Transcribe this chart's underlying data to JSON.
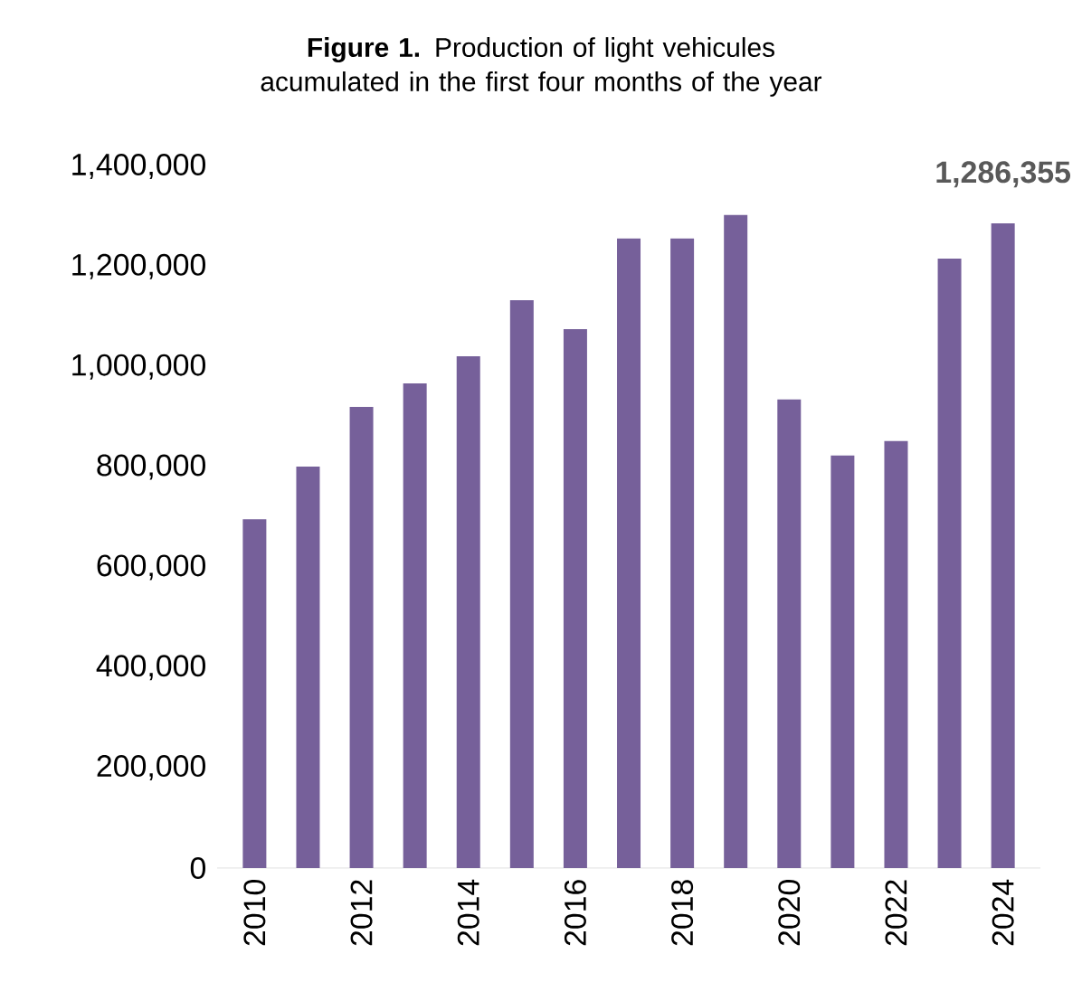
{
  "chart_data": {
    "type": "bar",
    "title": "**Figure 1.** Production of light vehicules acumulated in the first four months of the year",
    "categories": [
      "2010",
      null,
      "2012",
      null,
      "2014",
      null,
      "2016",
      null,
      "2018",
      null,
      "2020",
      null,
      "2022",
      null,
      "2024"
    ],
    "values": [
      696000,
      801000,
      920000,
      967000,
      1021000,
      1133000,
      1075000,
      1256000,
      1256000,
      1303000,
      935000,
      823000,
      852000,
      1216000,
      1286355
    ],
    "value_labels": [
      null,
      null,
      null,
      null,
      null,
      null,
      null,
      null,
      null,
      null,
      null,
      null,
      null,
      null,
      "1,286,355"
    ],
    "color": "#76609a",
    "ylim": [
      0,
      1400000
    ],
    "yticks": [
      {
        "value": 0,
        "label": "0"
      },
      {
        "value": 200000,
        "label": "200,000"
      },
      {
        "value": 400000,
        "label": "400,000"
      },
      {
        "value": 600000,
        "label": "600,000"
      },
      {
        "value": 800000,
        "label": "800,000"
      },
      {
        "value": 1000000,
        "label": "1,000,000"
      },
      {
        "value": 1200000,
        "label": "1,200,000"
      },
      {
        "value": 1400000,
        "label": "1,400,000"
      }
    ]
  }
}
